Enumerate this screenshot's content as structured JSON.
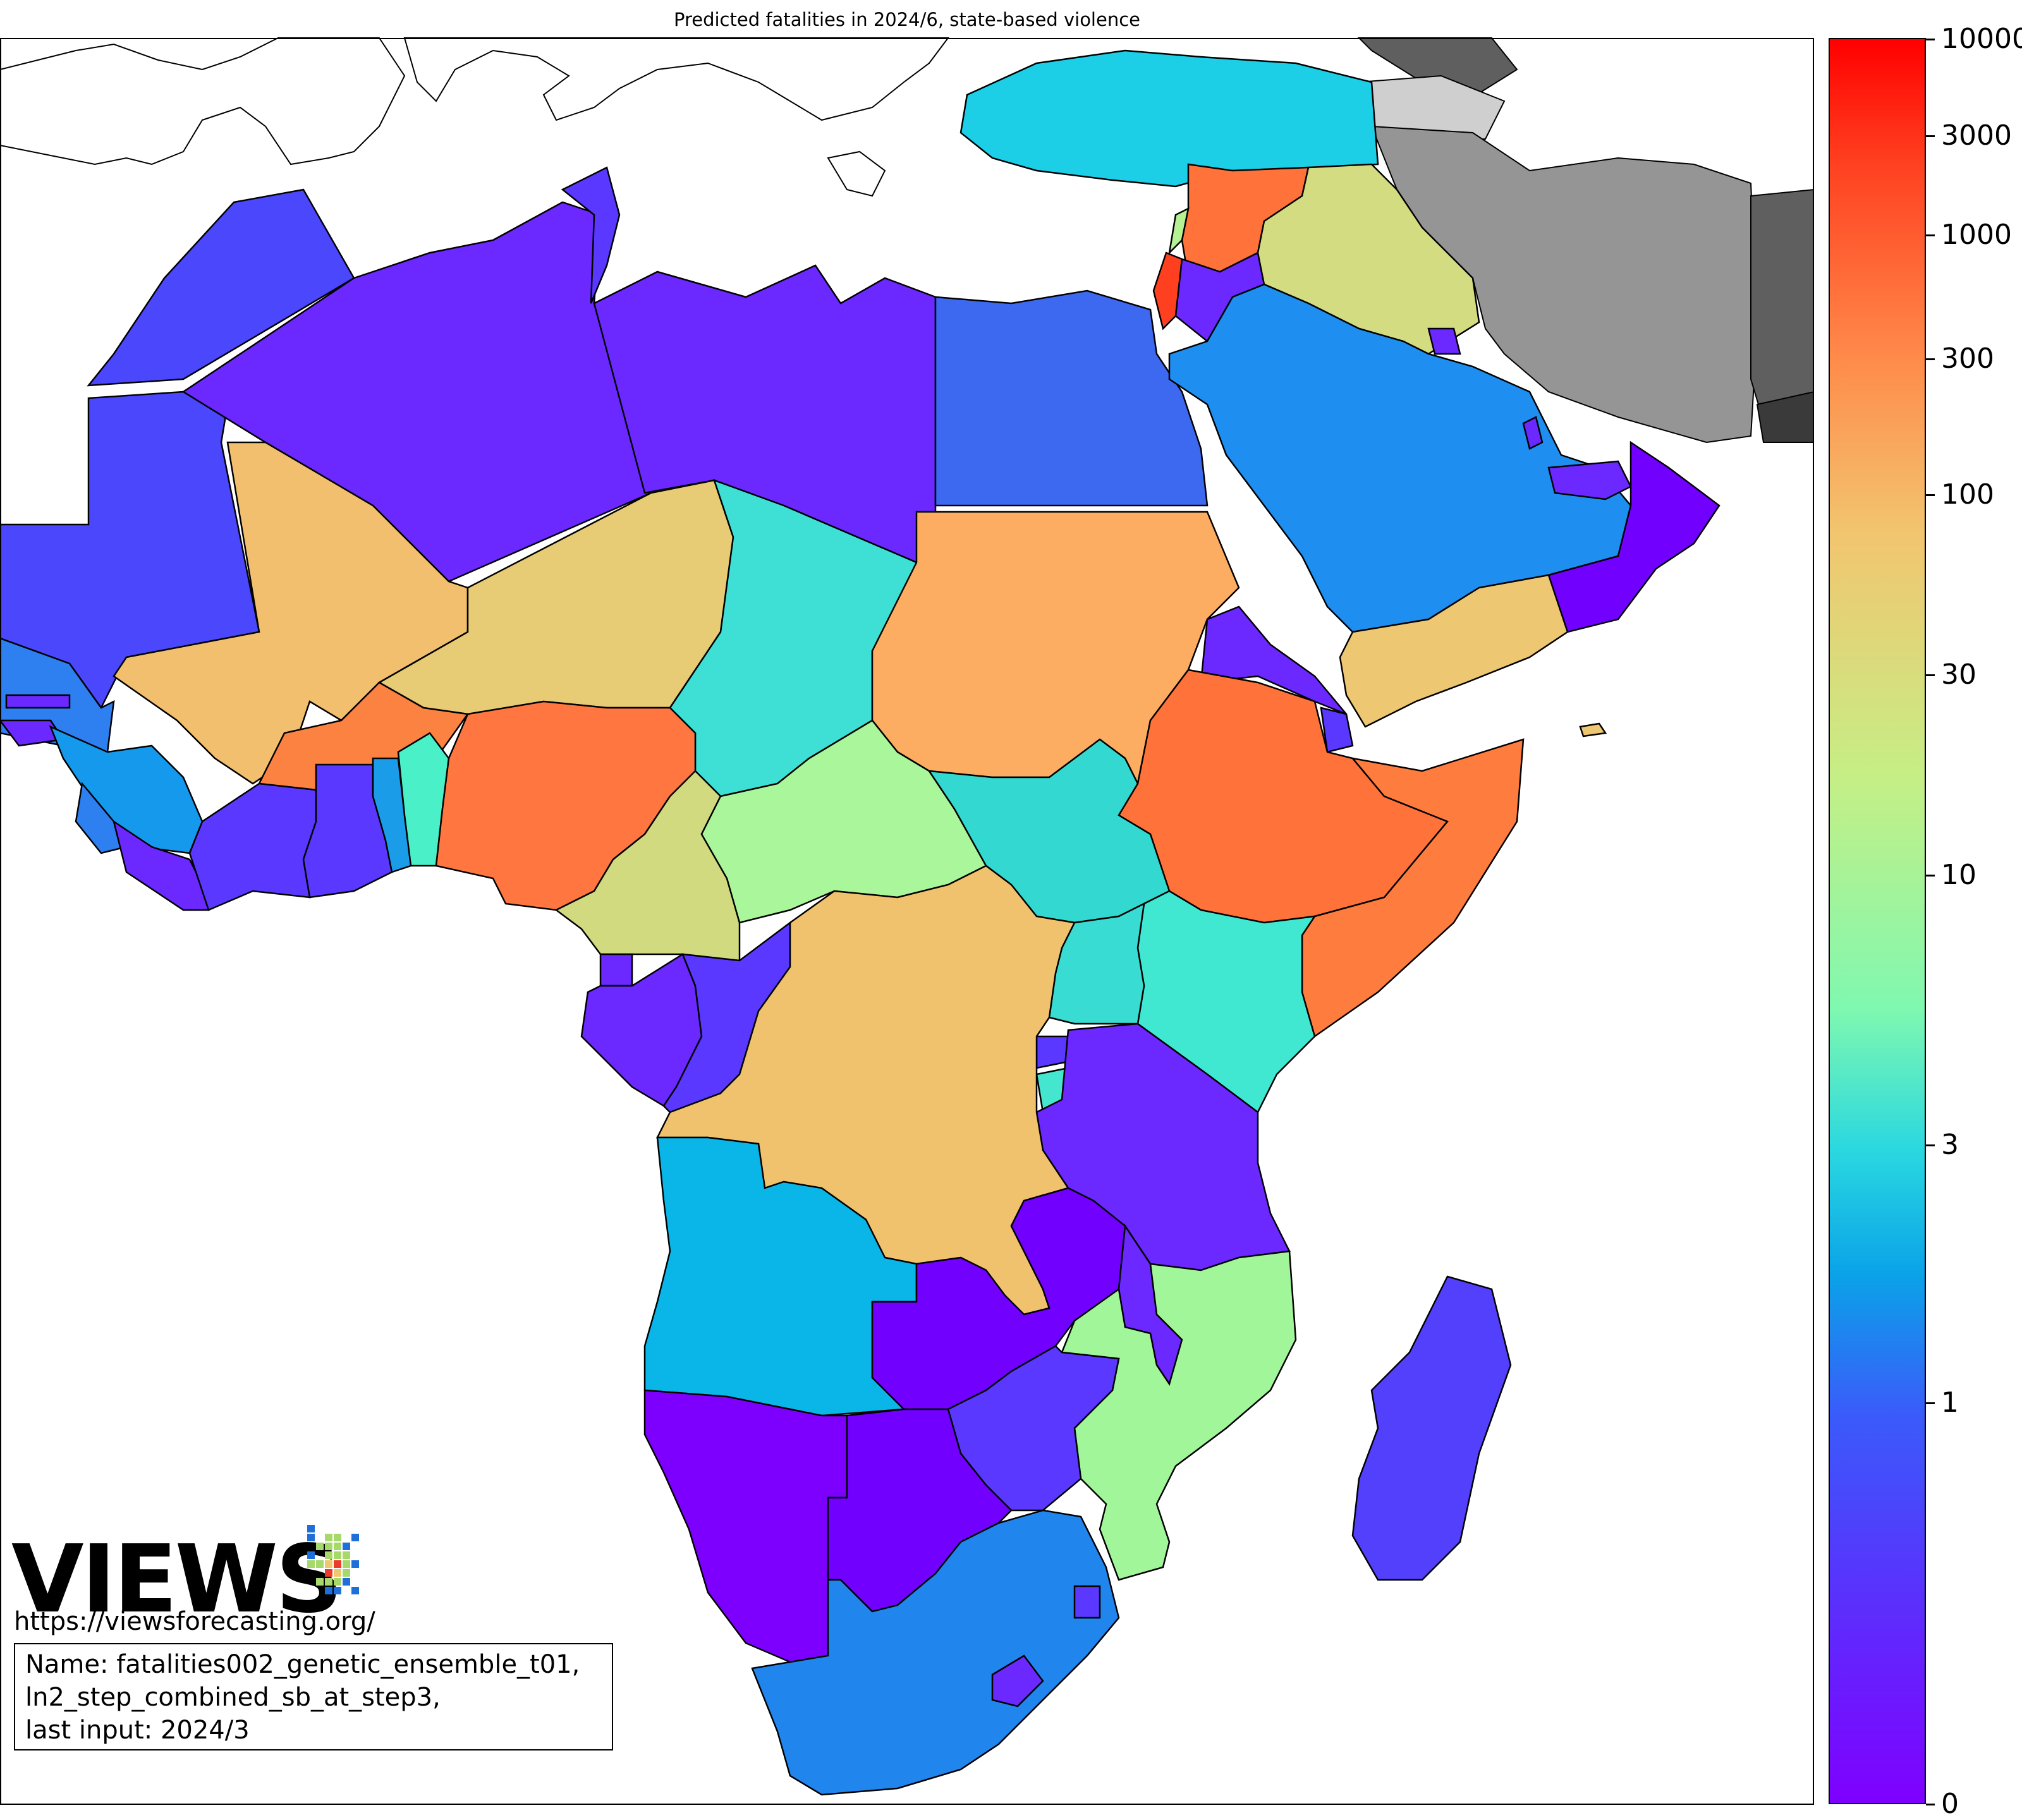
{
  "title": "Predicted fatalities in 2024/6, state-based violence",
  "colorbar": {
    "scale": "log-like",
    "ticks": [
      "10000",
      "3000",
      "1000",
      "300",
      "100",
      "30",
      "10",
      "3",
      "1",
      "0"
    ],
    "tick_values": [
      10000,
      3000,
      1000,
      300,
      100,
      30,
      10,
      3,
      1,
      0
    ],
    "gradient_colors": [
      "#7f00ff",
      "#3a5bfa",
      "#0aa3e8",
      "#2ad8e0",
      "#7ff8b0",
      "#c5ef86",
      "#f2c56f",
      "#ff8a4a",
      "#ff4020",
      "#ff0000"
    ]
  },
  "branding": {
    "logo_text": "VIEWS",
    "url": "https://viewsforecasting.org/"
  },
  "info": {
    "line1": "Name: fatalities002_genetic_ensemble_t01,",
    "line2": "ln2_step_combined_sb_at_step3,",
    "line3": "last input: 2024/3"
  },
  "region_colors": {
    "out_of_scope_dark": "#5f5f5f",
    "out_of_scope_mid": "#959595",
    "out_of_scope_light": "#cfcfcf",
    "background": "#ffffff"
  }
}
